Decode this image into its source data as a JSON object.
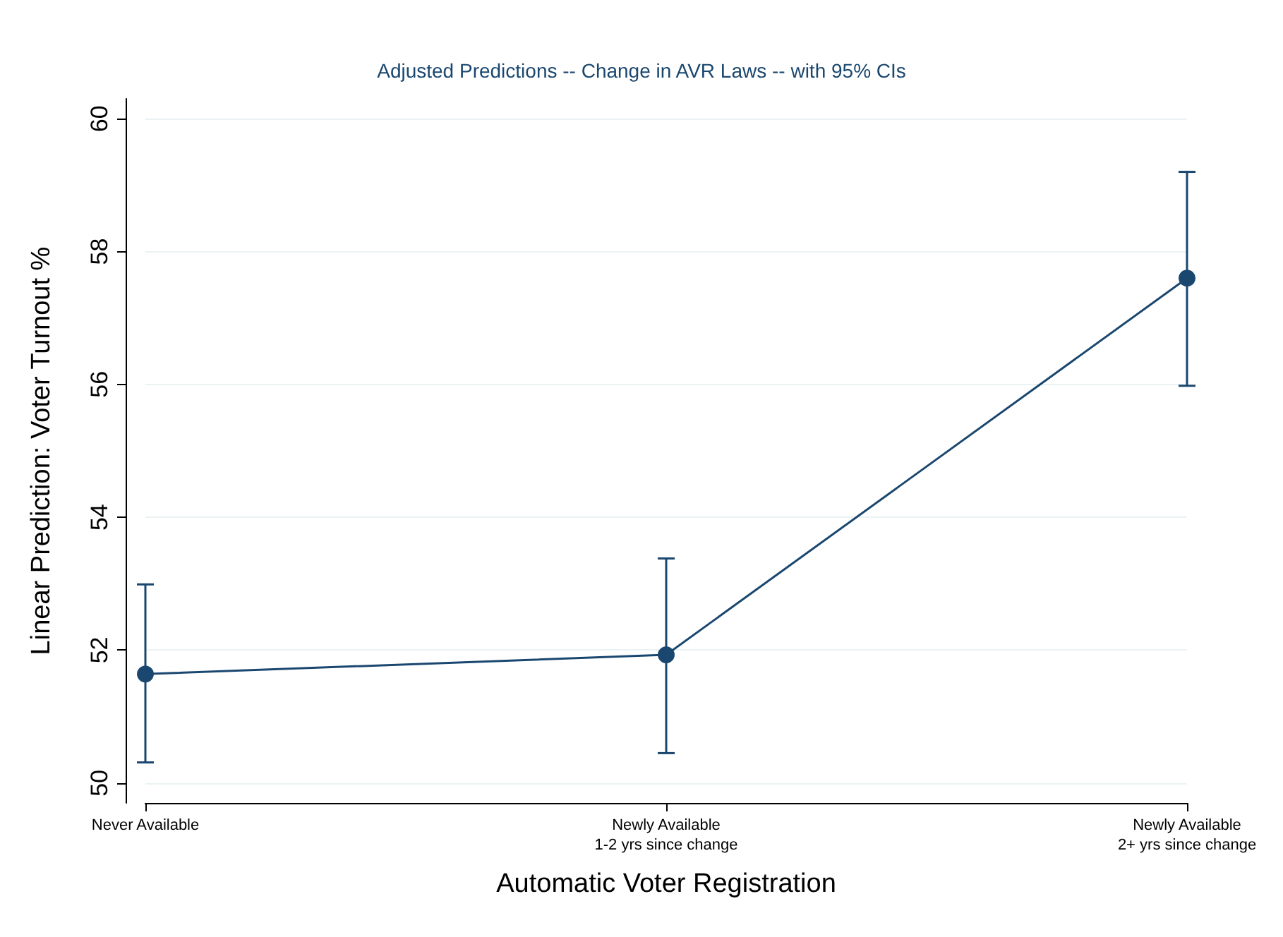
{
  "chart_data": {
    "type": "line",
    "title": "Adjusted Predictions -- Change in AVR Laws -- with 95% CIs",
    "xlabel": "Automatic Voter Registration",
    "ylabel": "Linear Prediction: Voter Turnout %",
    "categories": [
      "Never Available",
      "Newly Available\n1-2 yrs since change",
      "Newly Available\n2+ yrs since change"
    ],
    "series": [
      {
        "color": "#1a476f",
        "values": [
          51.64,
          51.93,
          57.6
        ],
        "errors": [
          [
            50.31,
            52.99
          ],
          [
            50.45,
            53.38
          ],
          [
            55.98,
            59.2
          ]
        ]
      }
    ],
    "ylim": [
      49.7,
      60.3
    ],
    "yticks": [
      50,
      52,
      54,
      56,
      58,
      60
    ],
    "grid": "y",
    "marker": "circle",
    "line_style": "solid"
  }
}
